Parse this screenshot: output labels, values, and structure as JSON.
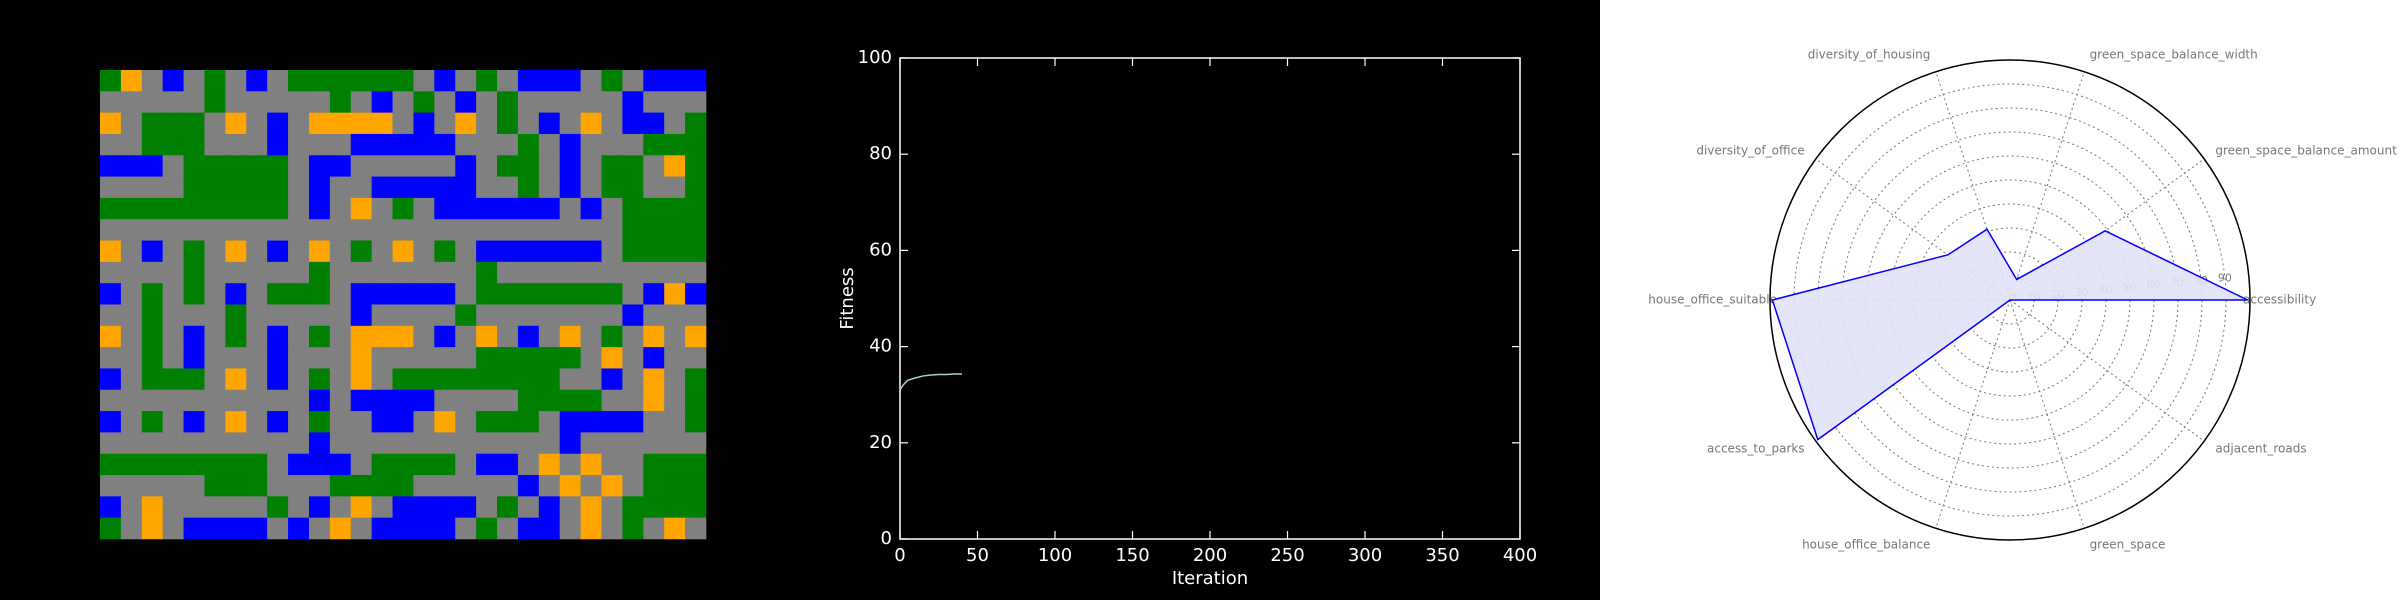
{
  "chart_data": [
    {
      "type": "grid",
      "colors": [
        "#808080",
        "#008000",
        "#0000ff",
        "#ffa500"
      ],
      "cells": [
        [
          1,
          3,
          0,
          2,
          0,
          1,
          0,
          2,
          0,
          1,
          1,
          1,
          1,
          1,
          1,
          0,
          2,
          0,
          1,
          0,
          2,
          2,
          2,
          0,
          1,
          0,
          2,
          2,
          2
        ],
        [
          0,
          0,
          0,
          0,
          0,
          1,
          0,
          0,
          0,
          0,
          0,
          1,
          0,
          2,
          0,
          1,
          0,
          2,
          0,
          1,
          0,
          0,
          0,
          0,
          0,
          2,
          0,
          0,
          0
        ],
        [
          3,
          0,
          1,
          1,
          1,
          0,
          3,
          0,
          2,
          0,
          3,
          3,
          3,
          3,
          0,
          2,
          0,
          3,
          0,
          1,
          0,
          2,
          0,
          3,
          0,
          2,
          2,
          0,
          1
        ],
        [
          0,
          0,
          1,
          1,
          1,
          0,
          0,
          0,
          2,
          0,
          0,
          0,
          2,
          2,
          2,
          2,
          2,
          0,
          0,
          0,
          1,
          0,
          2,
          0,
          0,
          0,
          1,
          1,
          1
        ],
        [
          2,
          2,
          2,
          0,
          1,
          1,
          1,
          1,
          1,
          0,
          2,
          2,
          0,
          0,
          0,
          0,
          0,
          2,
          0,
          1,
          1,
          0,
          2,
          0,
          1,
          1,
          0,
          3,
          1
        ],
        [
          0,
          0,
          0,
          0,
          1,
          1,
          1,
          1,
          1,
          0,
          2,
          0,
          0,
          2,
          2,
          2,
          2,
          2,
          0,
          0,
          1,
          0,
          2,
          0,
          1,
          1,
          0,
          0,
          1
        ],
        [
          1,
          1,
          1,
          1,
          1,
          1,
          1,
          1,
          1,
          0,
          2,
          0,
          3,
          0,
          1,
          0,
          2,
          2,
          2,
          2,
          2,
          2,
          0,
          2,
          0,
          1,
          1,
          1,
          1
        ],
        [
          0,
          0,
          0,
          0,
          0,
          0,
          0,
          0,
          0,
          0,
          0,
          0,
          0,
          0,
          0,
          0,
          0,
          0,
          0,
          0,
          0,
          0,
          0,
          0,
          0,
          1,
          1,
          1,
          1
        ],
        [
          3,
          0,
          2,
          0,
          1,
          0,
          3,
          0,
          2,
          0,
          3,
          0,
          1,
          0,
          3,
          0,
          1,
          0,
          2,
          2,
          2,
          2,
          2,
          2,
          0,
          1,
          1,
          1,
          1
        ],
        [
          0,
          0,
          0,
          0,
          1,
          0,
          0,
          0,
          0,
          0,
          1,
          0,
          0,
          0,
          0,
          0,
          0,
          0,
          1,
          0,
          0,
          0,
          0,
          0,
          0,
          0,
          0,
          0,
          0
        ],
        [
          2,
          0,
          1,
          0,
          1,
          0,
          2,
          0,
          1,
          1,
          1,
          0,
          2,
          2,
          2,
          2,
          2,
          0,
          1,
          1,
          1,
          1,
          1,
          1,
          1,
          0,
          2,
          3,
          2
        ],
        [
          0,
          0,
          1,
          0,
          0,
          0,
          1,
          0,
          0,
          0,
          0,
          0,
          2,
          0,
          0,
          0,
          0,
          1,
          0,
          0,
          0,
          0,
          0,
          0,
          0,
          2,
          0,
          0,
          0
        ],
        [
          3,
          0,
          1,
          0,
          2,
          0,
          1,
          0,
          2,
          0,
          1,
          0,
          3,
          3,
          3,
          0,
          2,
          0,
          3,
          0,
          2,
          0,
          3,
          0,
          1,
          0,
          3,
          0,
          3
        ],
        [
          0,
          0,
          1,
          0,
          2,
          0,
          0,
          0,
          2,
          0,
          0,
          0,
          3,
          0,
          0,
          0,
          0,
          0,
          1,
          1,
          1,
          1,
          1,
          0,
          3,
          0,
          2,
          0,
          0
        ],
        [
          2,
          0,
          1,
          1,
          1,
          0,
          3,
          0,
          2,
          0,
          1,
          0,
          3,
          0,
          1,
          1,
          1,
          1,
          1,
          1,
          1,
          1,
          0,
          0,
          2,
          0,
          3,
          0,
          1
        ],
        [
          0,
          0,
          0,
          0,
          0,
          0,
          0,
          0,
          0,
          0,
          2,
          0,
          2,
          2,
          2,
          2,
          0,
          0,
          0,
          0,
          1,
          1,
          1,
          1,
          0,
          0,
          3,
          0,
          1
        ],
        [
          2,
          0,
          1,
          0,
          2,
          0,
          3,
          0,
          2,
          0,
          1,
          0,
          0,
          2,
          2,
          0,
          3,
          0,
          1,
          1,
          1,
          0,
          2,
          2,
          2,
          2,
          0,
          0,
          1
        ],
        [
          0,
          0,
          0,
          0,
          0,
          0,
          0,
          0,
          0,
          0,
          2,
          0,
          0,
          0,
          0,
          0,
          0,
          0,
          0,
          0,
          0,
          0,
          2,
          0,
          0,
          0,
          0,
          0,
          0
        ],
        [
          1,
          1,
          1,
          1,
          1,
          1,
          1,
          1,
          0,
          2,
          2,
          2,
          0,
          1,
          1,
          1,
          1,
          0,
          2,
          2,
          0,
          3,
          0,
          3,
          0,
          0,
          1,
          1,
          1
        ],
        [
          0,
          0,
          0,
          0,
          0,
          1,
          1,
          1,
          0,
          0,
          0,
          1,
          1,
          1,
          1,
          0,
          0,
          0,
          0,
          0,
          2,
          0,
          3,
          0,
          3,
          0,
          1,
          1,
          1
        ],
        [
          2,
          0,
          3,
          0,
          0,
          0,
          0,
          0,
          1,
          0,
          2,
          0,
          3,
          0,
          2,
          2,
          2,
          2,
          0,
          1,
          0,
          2,
          0,
          3,
          0,
          1,
          1,
          1,
          1
        ],
        [
          1,
          0,
          3,
          0,
          2,
          2,
          2,
          2,
          0,
          2,
          0,
          3,
          0,
          2,
          2,
          2,
          2,
          0,
          1,
          0,
          2,
          2,
          0,
          3,
          0,
          1,
          0,
          3,
          0
        ]
      ]
    },
    {
      "type": "line",
      "x_label": "Iteration",
      "y_label": "Fitness",
      "x": [
        0,
        2,
        5,
        10,
        15,
        20,
        25,
        30,
        35,
        40
      ],
      "series": [
        {
          "color": "#a8d0d0",
          "values": [
            31,
            32,
            33,
            33.5,
            33.9,
            34.1,
            34.2,
            34.2,
            34.3,
            34.3
          ]
        }
      ],
      "xlim": [
        0,
        400
      ],
      "xticks": [
        0,
        50,
        100,
        150,
        200,
        250,
        300,
        350,
        400
      ],
      "ylim": [
        0,
        100
      ],
      "yticks": [
        0,
        20,
        40,
        60,
        80,
        100
      ]
    },
    {
      "type": "radar",
      "categories": [
        "accessibility",
        "green_space_balance_amount",
        "green_space_balance_width",
        "diversity_of_housing",
        "diversity_of_office",
        "house_office_suitable",
        "access_to_parks",
        "house_office_balance",
        "green_space",
        "adjacent_roads"
      ],
      "series": [
        {
          "color": "#0000ff",
          "fill": "#e2e2f8",
          "values": [
            99,
            49,
            9,
            31,
            32,
            99,
            99,
            0,
            0,
            0
          ]
        }
      ],
      "rlim": [
        0,
        100
      ],
      "rticks": [
        10,
        20,
        30,
        40,
        50,
        60,
        70,
        80,
        90
      ]
    }
  ]
}
